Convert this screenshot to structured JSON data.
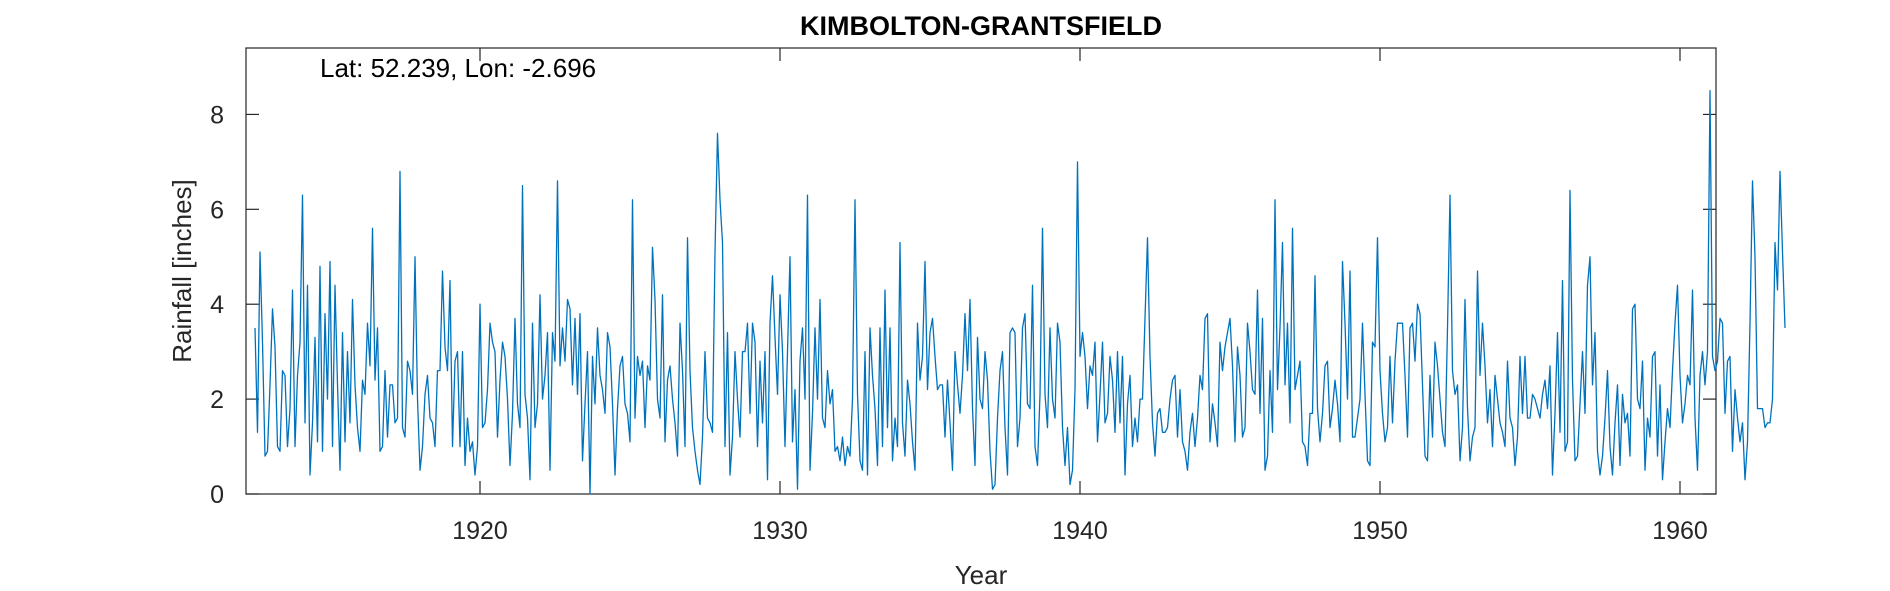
{
  "chart_data": {
    "type": "line",
    "title": "KIMBOLTON-GRANTSFIELD",
    "annotation": "Lat: 52.239, Lon: -2.696",
    "xlabel": "Year",
    "ylabel": "Rainfall [inches]",
    "xlim": [
      1912.2,
      1961.2
    ],
    "ylim": [
      0,
      9.4
    ],
    "xticks": [
      1920,
      1930,
      1940,
      1950,
      1960
    ],
    "yticks": [
      0,
      2,
      4,
      6,
      8
    ],
    "grid": false,
    "line_color": "#0072BD",
    "series": [
      {
        "x_start": 1912.5,
        "x_step": 0.0833333,
        "values": [
          3.5,
          1.3,
          5.1,
          3.2,
          0.8,
          0.9,
          2.3,
          3.9,
          3.1,
          1.0,
          0.9,
          2.6,
          2.5,
          1.0,
          1.8,
          4.3,
          1.0,
          2.5,
          3.2,
          6.3,
          1.5,
          4.4,
          0.4,
          1.5,
          3.3,
          1.1,
          4.8,
          0.9,
          3.8,
          2.0,
          4.9,
          1.0,
          4.4,
          2.3,
          0.5,
          3.4,
          1.1,
          3.0,
          1.5,
          4.1,
          2.3,
          1.4,
          0.9,
          2.4,
          2.1,
          3.6,
          2.7,
          5.6,
          2.4,
          3.5,
          0.9,
          1.0,
          2.6,
          1.2,
          2.3,
          2.3,
          1.5,
          1.6,
          6.8,
          1.4,
          1.2,
          2.8,
          2.6,
          2.1,
          5.0,
          2.0,
          0.5,
          1.0,
          2.1,
          2.5,
          1.6,
          1.5,
          1.0,
          2.6,
          2.6,
          4.7,
          3.1,
          2.6,
          4.5,
          1.0,
          2.8,
          3.0,
          1.0,
          3.0,
          0.6,
          1.6,
          0.9,
          1.1,
          0.4,
          1.0,
          4.0,
          1.4,
          1.5,
          2.2,
          3.6,
          3.2,
          3.0,
          1.2,
          2.4,
          3.2,
          2.9,
          2.0,
          0.6,
          1.7,
          3.7,
          1.9,
          1.4,
          6.5,
          2.1,
          1.6,
          0.3,
          3.6,
          1.4,
          1.9,
          4.2,
          2.0,
          2.5,
          3.4,
          0.5,
          3.4,
          2.8,
          6.6,
          2.7,
          3.5,
          2.8,
          4.1,
          3.9,
          2.3,
          3.7,
          2.1,
          3.8,
          0.7,
          1.9,
          3.0,
          0.0,
          2.9,
          1.9,
          3.5,
          2.5,
          2.2,
          1.7,
          3.4,
          3.1,
          1.9,
          0.4,
          1.8,
          2.7,
          2.9,
          1.9,
          1.7,
          1.1,
          6.2,
          1.6,
          2.9,
          2.5,
          2.8,
          1.4,
          2.7,
          2.4,
          5.2,
          4.1,
          2.0,
          1.6,
          4.2,
          1.1,
          2.4,
          2.7,
          2.0,
          1.5,
          0.8,
          3.6,
          2.6,
          1.0,
          5.4,
          2.6,
          1.4,
          0.9,
          0.5,
          0.2,
          1.2,
          3.0,
          1.6,
          1.5,
          1.3,
          5.1,
          7.6,
          6.2,
          5.3,
          1.0,
          3.4,
          0.4,
          1.2,
          3.0,
          2.0,
          1.2,
          3.0,
          3.0,
          3.6,
          1.7,
          3.6,
          3.2,
          1.0,
          2.8,
          1.5,
          3.0,
          0.3,
          3.6,
          4.6,
          3.3,
          2.1,
          4.2,
          3.0,
          1.0,
          3.0,
          5.0,
          1.1,
          2.2,
          0.1,
          2.8,
          3.5,
          2.0,
          6.3,
          0.5,
          1.7,
          3.5,
          2.0,
          4.1,
          1.6,
          1.4,
          2.6,
          1.9,
          2.2,
          0.9,
          1.0,
          0.7,
          1.2,
          0.6,
          1.0,
          0.8,
          2.0,
          6.2,
          2.1,
          0.7,
          0.5,
          3.0,
          0.4,
          3.5,
          2.5,
          1.8,
          0.6,
          3.5,
          1.0,
          4.3,
          1.4,
          3.5,
          0.7,
          1.6,
          1.0,
          5.3,
          1.5,
          0.8,
          2.4,
          1.9,
          1.1,
          0.5,
          3.6,
          2.4,
          2.9,
          4.9,
          2.2,
          3.4,
          3.7,
          2.9,
          2.2,
          2.3,
          2.3,
          1.2,
          2.4,
          1.5,
          0.5,
          3.0,
          2.3,
          1.7,
          2.5,
          3.8,
          2.6,
          4.1,
          1.8,
          0.6,
          3.3,
          2.0,
          1.8,
          3.0,
          2.4,
          0.9,
          0.1,
          0.2,
          1.6,
          2.6,
          3.0,
          1.4,
          0.4,
          3.4,
          3.5,
          3.4,
          1.0,
          1.6,
          3.5,
          3.8,
          1.9,
          1.8,
          4.4,
          1.0,
          0.6,
          2.1,
          5.6,
          2.1,
          1.4,
          3.5,
          2.0,
          1.6,
          3.6,
          3.2,
          1.4,
          0.6,
          1.4,
          0.2,
          0.5,
          2.2,
          7.0,
          2.9,
          3.4,
          2.9,
          1.8,
          2.7,
          2.5,
          3.2,
          1.1,
          2.1,
          3.2,
          1.5,
          1.7,
          2.9,
          2.4,
          1.3,
          3.0,
          1.5,
          2.9,
          0.4,
          1.9,
          2.5,
          1.0,
          1.6,
          1.1,
          2.0,
          2.0,
          3.7,
          5.4,
          2.9,
          1.5,
          0.8,
          1.7,
          1.8,
          1.3,
          1.3,
          1.4,
          2.0,
          2.4,
          2.5,
          1.2,
          2.2,
          1.1,
          0.9,
          0.5,
          1.3,
          1.7,
          1.0,
          1.6,
          2.5,
          2.2,
          3.7,
          3.8,
          1.1,
          1.9,
          1.5,
          1.0,
          3.2,
          2.6,
          3.1,
          3.4,
          3.7,
          2.7,
          1.1,
          3.1,
          2.5,
          1.2,
          1.4,
          3.6,
          3.0,
          2.2,
          2.1,
          4.3,
          1.7,
          3.7,
          0.5,
          0.8,
          2.6,
          1.3,
          6.2,
          2.2,
          3.5,
          5.3,
          2.3,
          3.6,
          1.5,
          5.6,
          2.2,
          2.5,
          2.8,
          1.1,
          1.0,
          0.6,
          1.7,
          1.7,
          4.6,
          1.8,
          1.1,
          1.7,
          2.7,
          2.8,
          1.4,
          1.8,
          2.4,
          1.9,
          1.1,
          4.9,
          3.6,
          2.0,
          4.7,
          1.2,
          1.2,
          1.6,
          2.0,
          3.6,
          2.1,
          0.7,
          0.6,
          3.2,
          3.1,
          5.4,
          2.6,
          1.7,
          1.1,
          1.4,
          2.9,
          1.5,
          2.8,
          3.6,
          3.6,
          3.6,
          2.5,
          1.2,
          3.5,
          3.6,
          2.8,
          4.0,
          3.8,
          2.3,
          0.8,
          0.7,
          2.5,
          1.2,
          3.2,
          2.7,
          2.0,
          1.3,
          1.0,
          3.5,
          6.3,
          2.6,
          2.1,
          2.3,
          0.7,
          1.4,
          4.1,
          1.8,
          0.7,
          1.2,
          1.4,
          4.7,
          2.5,
          3.6,
          2.7,
          1.5,
          2.2,
          1.0,
          2.5,
          2.0,
          1.5,
          1.3,
          1.0,
          2.8,
          1.6,
          1.4,
          0.6,
          1.2,
          2.9,
          1.7,
          2.9,
          1.6,
          1.6,
          2.1,
          2.0,
          1.8,
          1.6,
          2.1,
          2.4,
          1.8,
          2.7,
          0.4,
          1.7,
          3.4,
          1.3,
          4.5,
          0.9,
          1.1,
          6.4,
          2.4,
          0.7,
          0.8,
          1.9,
          3.0,
          1.7,
          4.4,
          5.0,
          2.3,
          3.4,
          0.9,
          0.4,
          0.8,
          1.6,
          2.6,
          1.0,
          0.4,
          1.5,
          2.3,
          0.6,
          2.1,
          1.5,
          1.7,
          0.8,
          3.9,
          4.0,
          2.0,
          1.8,
          2.8,
          0.5,
          1.6,
          1.2,
          2.9,
          3.0,
          0.8,
          2.3,
          0.3,
          1.1,
          1.8,
          1.4,
          2.6,
          3.6,
          4.4,
          2.5,
          1.5,
          1.9,
          2.5,
          2.3,
          4.3,
          1.6,
          0.5,
          2.5,
          3.0,
          2.3,
          3.0,
          8.5,
          2.9,
          2.6,
          2.8,
          3.7,
          3.6,
          1.7,
          2.8,
          2.9,
          0.9,
          2.2,
          1.6,
          1.1,
          1.5,
          0.3,
          1.1,
          3.6,
          6.6,
          5.0,
          1.8,
          1.8,
          1.8,
          1.4,
          1.5,
          1.5,
          2.0,
          5.3,
          4.3,
          6.8,
          5.1,
          3.5
        ]
      }
    ]
  }
}
